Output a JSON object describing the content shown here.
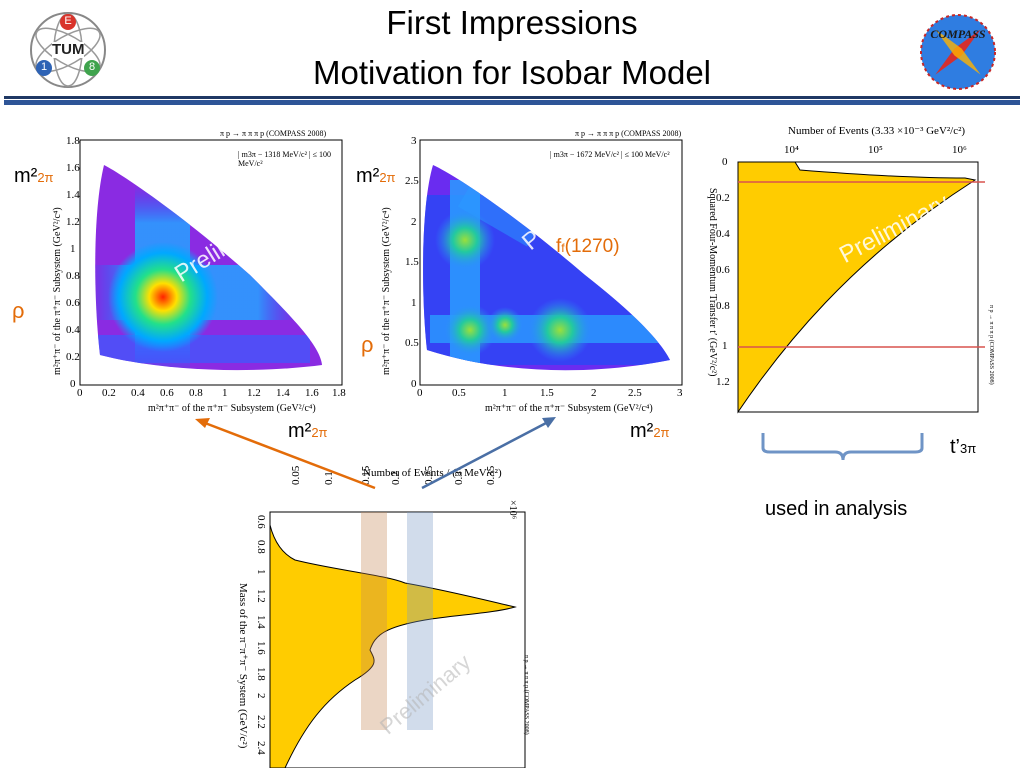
{
  "slide": {
    "title_line1": "First Impressions",
    "title_line2": "Motivation for Isobar Model"
  },
  "logos": {
    "left": {
      "name": "TUM E18 logo",
      "text": "TUM",
      "num_e": "E",
      "num_1": "1",
      "num_8": "8"
    },
    "right": {
      "name": "COMPASS logo",
      "text": "COMPASS"
    }
  },
  "plot_left": {
    "header": "π p → π π π p (COMPASS 2008)",
    "cut": "| m3π − 1318 MeV/c² | ≤ 100 MeV/c²",
    "xlabel": "m²π⁺π⁻ of the π⁺π⁻ Subsystem (GeV²/c⁴)",
    "ylabel": "m²π⁺π⁻ of the π⁺π⁻ Subsystem (GeV²/c⁴)",
    "xticks": [
      "0",
      "0.2",
      "0.4",
      "0.6",
      "0.8",
      "1",
      "1.2",
      "1.4",
      "1.6",
      "1.8"
    ],
    "yticks": [
      "0",
      "0.2",
      "0.4",
      "0.6",
      "0.8",
      "1",
      "1.2",
      "1.4",
      "1.6",
      "1.8"
    ],
    "watermark": "Preliminary"
  },
  "plot_mid": {
    "header": "π p → π π π p (COMPASS 2008)",
    "cut": "| m3π − 1672 MeV/c² | ≤ 100 MeV/c²",
    "xlabel": "m²π⁺π⁻ of the π⁺π⁻ Subsystem (GeV²/c⁴)",
    "ylabel": "m²π⁺π⁻ of the π⁺π⁻ Subsystem (GeV²/c⁴)",
    "xticks": [
      "0",
      "0.5",
      "1",
      "1.5",
      "2",
      "2.5",
      "3"
    ],
    "yticks": [
      "0",
      "0.5",
      "1",
      "1.5",
      "2",
      "2.5",
      "3"
    ],
    "watermark": "Preliminary"
  },
  "plot_right": {
    "header": "Number of Events (3.33 ×10⁻³ GeV²/c²)",
    "ylabel": "Squared Four-Momentum Transfer t′ (GeV²/c²)",
    "side": "π p → π π π p (COMPASS 2008)",
    "xticks": [
      "10⁴",
      "10⁵",
      "10⁶"
    ],
    "yticks": [
      "0",
      "0.2",
      "0.4",
      "0.6",
      "0.8",
      "1",
      "1.2"
    ],
    "watermark": "Preliminary"
  },
  "plot_bottom": {
    "header": "Number of Events / (5 MeV/c²)",
    "ylabel": "Mass of the π⁻π⁺π⁻ System (GeV/c²)",
    "side": "π p → π π π p (COMPASS 2008)",
    "xticks": [
      "0.05",
      "0.1",
      "0.15",
      "0.2",
      "0.25",
      "0.3",
      "0.35"
    ],
    "exponent": "×10⁶",
    "yticks": [
      "0.6",
      "0.8",
      "1",
      "1.2",
      "1.4",
      "1.6",
      "1.8",
      "2",
      "2.2",
      "2.4"
    ],
    "watermark": "Preliminary"
  },
  "annotations": {
    "m2_label": "m²",
    "m2_sub": "2π",
    "rho": "ρ",
    "f_label": "f",
    "f_sub": "f",
    "f_mass": "(1270)",
    "t_label": "t’",
    "t_sub": "3π",
    "used": "used in analysis"
  },
  "colors": {
    "title": "#000000",
    "rule": "#2e5597",
    "orange": "#e36c09",
    "blue_arrow": "#4a6fa5",
    "fill": "#ffcc00",
    "cut_line": "#d9534f"
  }
}
